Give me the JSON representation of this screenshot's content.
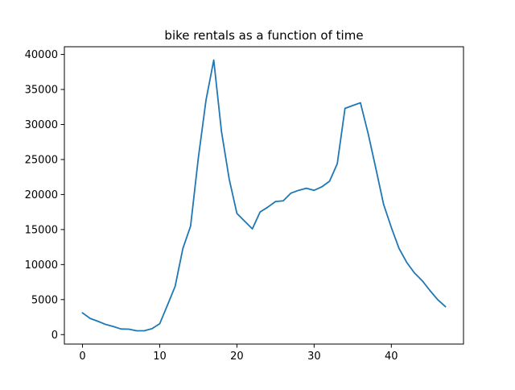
{
  "chart_data": {
    "type": "line",
    "title": "bike rentals as a function of time",
    "xlabel": "",
    "ylabel": "",
    "xlim": [
      -2.35,
      49.35
    ],
    "ylim": [
      -1350,
      41100
    ],
    "xticks": [
      0,
      10,
      20,
      30,
      40
    ],
    "yticks": [
      0,
      5000,
      10000,
      15000,
      20000,
      25000,
      30000,
      35000,
      40000
    ],
    "grid": false,
    "legend": "none",
    "series": [
      {
        "color": "#1f77b4",
        "x": [
          0,
          1,
          2,
          3,
          4,
          5,
          6,
          7,
          8,
          9,
          10,
          11,
          12,
          13,
          14,
          15,
          16,
          17,
          18,
          19,
          20,
          21,
          22,
          23,
          24,
          25,
          26,
          27,
          28,
          29,
          30,
          31,
          32,
          33,
          34,
          35,
          36,
          37,
          38,
          39,
          40,
          41,
          42,
          43,
          44,
          45,
          46,
          47
        ],
        "values": [
          3100,
          2300,
          1900,
          1450,
          1150,
          800,
          780,
          550,
          550,
          850,
          1550,
          4200,
          6900,
          12300,
          15500,
          25200,
          33500,
          39200,
          29000,
          22200,
          17300,
          16200,
          15100,
          17500,
          18200,
          19000,
          19100,
          20200,
          20600,
          20900,
          20600,
          21100,
          21900,
          24400,
          32300,
          32700,
          33100,
          28700,
          23700,
          18600,
          15300,
          12300,
          10300,
          8800,
          7700,
          6300,
          5000,
          4000
        ]
      }
    ]
  }
}
